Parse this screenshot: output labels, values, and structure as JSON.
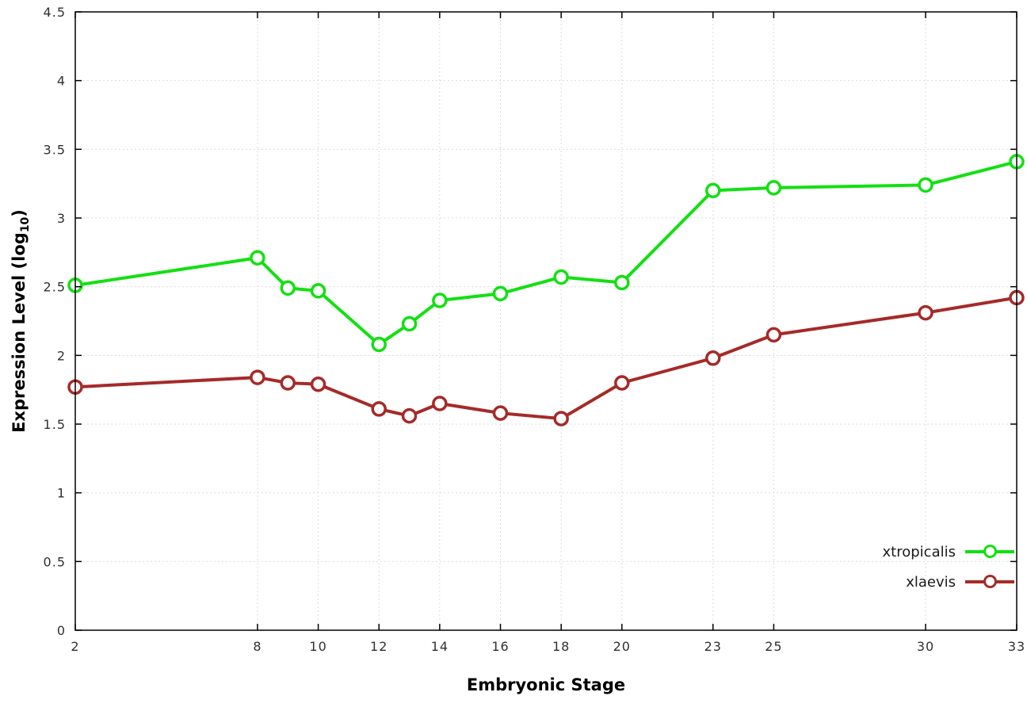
{
  "chart_data": {
    "type": "line",
    "title": "",
    "xlabel": "Embryonic Stage",
    "ylabel": "Expression Level (log10)",
    "ylabel_parts": {
      "pre": "Expression Level (log",
      "sub": "10",
      "post": ")"
    },
    "xlim": [
      2,
      33
    ],
    "ylim": [
      0,
      4.5
    ],
    "x_ticks": [
      2,
      8,
      10,
      12,
      14,
      16,
      18,
      20,
      23,
      25,
      30,
      33
    ],
    "y_ticks": [
      0,
      0.5,
      1,
      1.5,
      2,
      2.5,
      3,
      3.5,
      4,
      4.5
    ],
    "grid": true,
    "legend_position": "bottom-right",
    "x": [
      2,
      8,
      9,
      10,
      12,
      13,
      14,
      16,
      18,
      20,
      23,
      25,
      30,
      33
    ],
    "series": [
      {
        "name": "xtropicalis",
        "color": "#12e012",
        "values": [
          2.51,
          2.71,
          2.49,
          2.47,
          2.08,
          2.23,
          2.4,
          2.45,
          2.57,
          2.53,
          3.2,
          3.22,
          3.24,
          3.41
        ]
      },
      {
        "name": "xlaevis",
        "color": "#a52a28",
        "values": [
          1.77,
          1.84,
          1.8,
          1.79,
          1.61,
          1.56,
          1.65,
          1.58,
          1.54,
          1.8,
          1.98,
          2.15,
          2.31,
          2.42
        ]
      }
    ]
  }
}
